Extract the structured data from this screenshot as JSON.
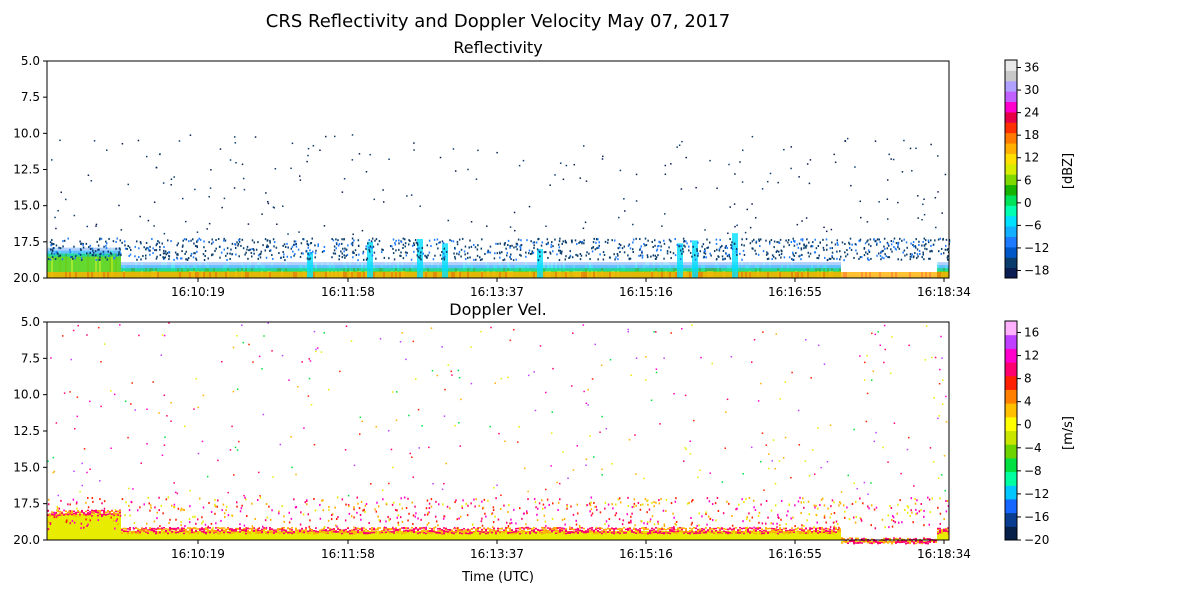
{
  "figure": {
    "suptitle": "CRS Reflectivity and Doppler Velocity May 07, 2017",
    "xlabel": "Time (UTC)"
  },
  "chart_data": [
    {
      "type": "heatmap",
      "title": "Reflectivity",
      "xticks": [
        "16:10:19",
        "16:11:58",
        "16:13:37",
        "16:15:16",
        "16:16:55",
        "16:18:34"
      ],
      "yticks": [
        "5.0",
        "7.5",
        "10.0",
        "12.5",
        "15.0",
        "17.5",
        "20.0"
      ],
      "ylim": [
        20.0,
        5.0
      ],
      "y_inverted": true,
      "colorbar": {
        "label": "[dBZ]",
        "ticks": [
          "36",
          "30",
          "24",
          "18",
          "12",
          "6",
          "0",
          "−6",
          "−12",
          "−18"
        ],
        "range": [
          -20,
          38
        ],
        "colors": [
          "#0b1d51",
          "#0a3d6b",
          "#0057c8",
          "#1e7bff",
          "#12b0ff",
          "#00e0ff",
          "#00ffb0",
          "#00e25a",
          "#16b400",
          "#7fd900",
          "#d8ec00",
          "#ffe000",
          "#ffb000",
          "#ff7a00",
          "#ff3000",
          "#e60045",
          "#ff00cc",
          "#c060ff",
          "#b0a0ff",
          "#c8c8c8",
          "#e8e8e8"
        ]
      },
      "features": {
        "surface_band_km": [
          18.8,
          20.0
        ],
        "cloud_layer_km": [
          17.8,
          19.5
        ],
        "sparse_noise": true
      }
    },
    {
      "type": "heatmap",
      "title": "Doppler Vel.",
      "xticks": [
        "16:10:19",
        "16:11:58",
        "16:13:37",
        "16:15:16",
        "16:16:55",
        "16:18:34"
      ],
      "yticks": [
        "5.0",
        "7.5",
        "10.0",
        "12.5",
        "15.0",
        "17.5",
        "20.0"
      ],
      "ylim": [
        20.0,
        5.0
      ],
      "y_inverted": true,
      "xlabel": "Time (UTC)",
      "colorbar": {
        "label": "[m/s]",
        "ticks": [
          "16",
          "12",
          "8",
          "4",
          "0",
          "−4",
          "−8",
          "−12",
          "−16",
          "−20"
        ],
        "range": [
          -20,
          18
        ],
        "colors": [
          "#06204a",
          "#0a3d8f",
          "#1565ff",
          "#00c8ff",
          "#00ffa0",
          "#00e040",
          "#6ed400",
          "#c8e600",
          "#ffff00",
          "#ffc000",
          "#ff8000",
          "#ff2000",
          "#ff0070",
          "#ff00cc",
          "#c040ff",
          "#ffb0ff"
        ]
      },
      "features": {
        "surface_band_km": [
          18.9,
          20.0
        ],
        "sparse_noise": true
      }
    }
  ]
}
